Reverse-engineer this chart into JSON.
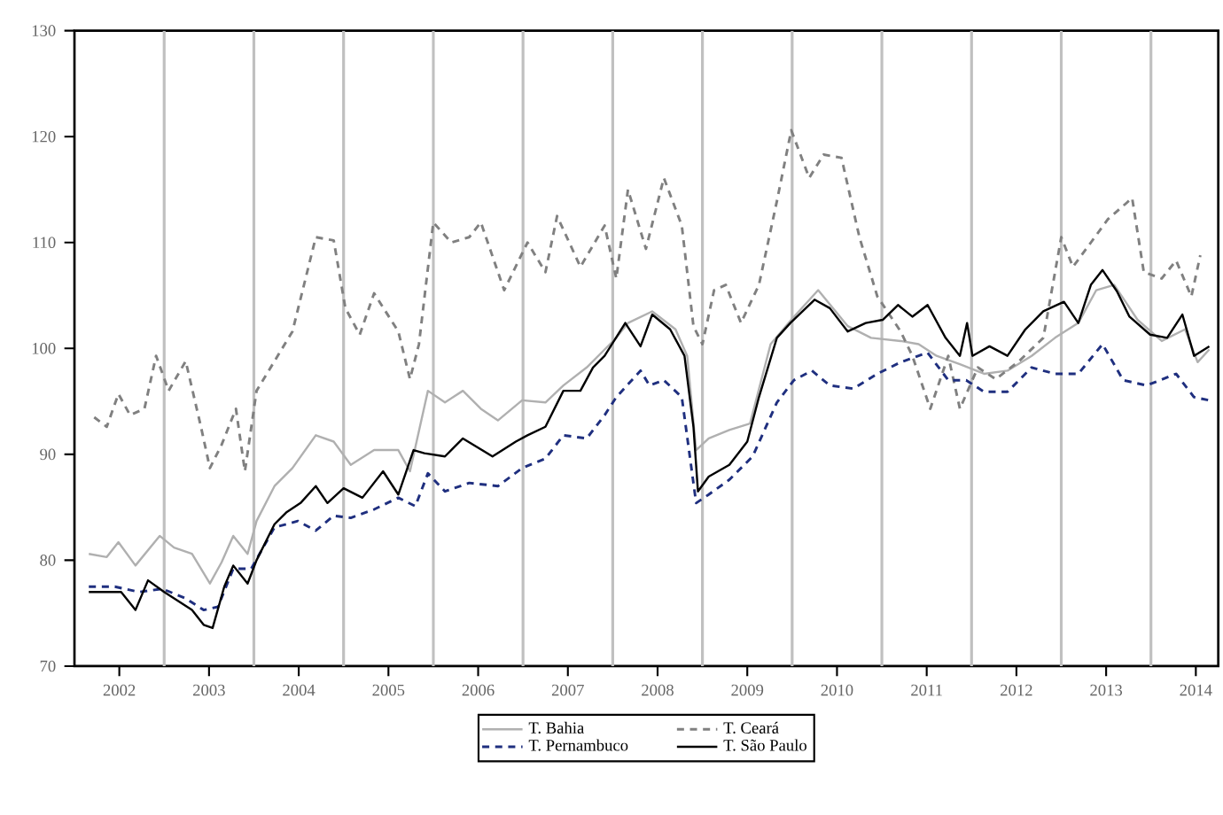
{
  "chart_data": {
    "type": "line",
    "xlim": [
      2002,
      2014.75
    ],
    "ylim": [
      70,
      130
    ],
    "yticks": [
      70,
      80,
      90,
      100,
      110,
      120,
      130
    ],
    "xticks": [
      {
        "value": 2002.5,
        "label": "2002"
      },
      {
        "value": 2003.5,
        "label": "2003"
      },
      {
        "value": 2004.5,
        "label": "2004"
      },
      {
        "value": 2005.5,
        "label": "2005"
      },
      {
        "value": 2006.5,
        "label": "2006"
      },
      {
        "value": 2007.5,
        "label": "2007"
      },
      {
        "value": 2008.5,
        "label": "2008"
      },
      {
        "value": 2009.5,
        "label": "2009"
      },
      {
        "value": 2010.5,
        "label": "2010"
      },
      {
        "value": 2011.5,
        "label": "2011"
      },
      {
        "value": 2012.5,
        "label": "2012"
      },
      {
        "value": 2013.5,
        "label": "2013"
      },
      {
        "value": 2014.5,
        "label": "2014"
      }
    ],
    "grid": false,
    "legend": "bottom",
    "marker": "none",
    "ref_lines": [
      {
        "axis": "x",
        "value": 2003,
        "color": "#c0c0c0"
      },
      {
        "axis": "x",
        "value": 2004,
        "color": "#c0c0c0"
      },
      {
        "axis": "x",
        "value": 2005,
        "color": "#c0c0c0"
      },
      {
        "axis": "x",
        "value": 2006,
        "color": "#c0c0c0"
      },
      {
        "axis": "x",
        "value": 2007,
        "color": "#c0c0c0"
      },
      {
        "axis": "x",
        "value": 2008,
        "color": "#c0c0c0"
      },
      {
        "axis": "x",
        "value": 2009,
        "color": "#c0c0c0"
      },
      {
        "axis": "x",
        "value": 2010,
        "color": "#c0c0c0"
      },
      {
        "axis": "x",
        "value": 2011,
        "color": "#c0c0c0"
      },
      {
        "axis": "x",
        "value": 2012,
        "color": "#c0c0c0"
      },
      {
        "axis": "x",
        "value": 2013,
        "color": "#c0c0c0"
      },
      {
        "axis": "x",
        "value": 2014,
        "color": "#c0c0c0"
      }
    ],
    "series": [
      {
        "name": "T. Bahia",
        "color": "#b0b0b0",
        "line_style": "solid",
        "x": [
          2002.16,
          2002.36,
          2002.49,
          2002.68,
          2002.95,
          2003.11,
          2003.31,
          2003.51,
          2003.64,
          2003.77,
          2003.93,
          2004.03,
          2004.23,
          2004.43,
          2004.69,
          2004.89,
          2005.08,
          2005.34,
          2005.61,
          2005.74,
          2005.94,
          2006.13,
          2006.33,
          2006.53,
          2006.72,
          2006.99,
          2007.25,
          2007.45,
          2007.71,
          2007.91,
          2008.04,
          2008.17,
          2008.44,
          2008.7,
          2008.83,
          2008.93,
          2009.07,
          2009.3,
          2009.53,
          2009.76,
          2009.99,
          2010.29,
          2010.62,
          2010.88,
          2011.21,
          2011.41,
          2011.61,
          2011.87,
          2012.14,
          2012.4,
          2012.67,
          2012.93,
          2013.19,
          2013.39,
          2013.59,
          2013.85,
          2014.12,
          2014.38,
          2014.52,
          2014.65
        ],
        "values": [
          80.6,
          80.3,
          81.7,
          79.5,
          82.3,
          81.2,
          80.6,
          77.8,
          79.8,
          82.3,
          80.6,
          83.7,
          87,
          88.7,
          91.8,
          91.2,
          89,
          90.4,
          90.4,
          88.4,
          96,
          94.9,
          96,
          94.3,
          93.2,
          95.1,
          94.9,
          96.5,
          98.2,
          99.9,
          101,
          102.4,
          103.5,
          101.8,
          99.3,
          90.4,
          91.5,
          92.3,
          92.9,
          100.4,
          102.7,
          105.5,
          102.1,
          101,
          100.7,
          100.4,
          99.3,
          98.5,
          97.6,
          97.9,
          99.3,
          101,
          102.4,
          105.5,
          106,
          102.7,
          100.7,
          101.8,
          98.7,
          99.9
        ]
      },
      {
        "name": "T. Ceará",
        "color": "#808080",
        "line_style": "dashed",
        "x": [
          2002.22,
          2002.36,
          2002.49,
          2002.62,
          2002.78,
          2002.91,
          2003.05,
          2003.24,
          2003.41,
          2003.51,
          2003.64,
          2003.8,
          2003.9,
          2004.03,
          2004.23,
          2004.43,
          2004.69,
          2004.89,
          2005.02,
          2005.18,
          2005.34,
          2005.61,
          2005.74,
          2005.84,
          2006.0,
          2006.2,
          2006.4,
          2006.53,
          2006.79,
          2007.05,
          2007.25,
          2007.38,
          2007.64,
          2007.91,
          2008.04,
          2008.17,
          2008.37,
          2008.57,
          2008.77,
          2008.9,
          2009.0,
          2009.13,
          2009.26,
          2009.43,
          2009.63,
          2009.83,
          2009.99,
          2010.19,
          2010.35,
          2010.55,
          2010.75,
          2010.95,
          2011.21,
          2011.34,
          2011.54,
          2011.74,
          2011.87,
          2012.07,
          2012.27,
          2012.53,
          2012.8,
          2013.0,
          2013.13,
          2013.33,
          2013.52,
          2013.79,
          2013.92,
          2014.12,
          2014.28,
          2014.45,
          2014.55
        ],
        "values": [
          93.5,
          92.6,
          95.7,
          93.7,
          94.3,
          99.3,
          96,
          98.8,
          92.6,
          88.7,
          90.9,
          94.3,
          88.4,
          96,
          98.8,
          101.6,
          110.5,
          110.2,
          103.8,
          101.3,
          105.2,
          101.6,
          97.1,
          100.4,
          111.9,
          110,
          110.5,
          111.9,
          105.5,
          110,
          107.2,
          112.5,
          107.7,
          111.6,
          106.6,
          115,
          109.4,
          116.1,
          111.6,
          102.1,
          100.4,
          105.5,
          106,
          102.4,
          106,
          113.9,
          120.6,
          116.1,
          118.3,
          118,
          110.5,
          104.9,
          101.6,
          99.3,
          94.3,
          99.3,
          94.3,
          98.2,
          97.1,
          98.8,
          101,
          110.5,
          107.7,
          110,
          112.2,
          114.2,
          107.2,
          106.6,
          108.3,
          104.9,
          108.8
        ]
      },
      {
        "name": "T. Pernambuco",
        "color": "#1f2f7f",
        "line_style": "dashed",
        "x": [
          2002.16,
          2002.45,
          2002.72,
          2002.98,
          2003.24,
          2003.44,
          2003.6,
          2003.77,
          2003.97,
          2004.23,
          2004.49,
          2004.69,
          2004.89,
          2005.08,
          2005.34,
          2005.61,
          2005.8,
          2005.94,
          2006.13,
          2006.4,
          2006.72,
          2006.99,
          2007.25,
          2007.45,
          2007.71,
          2007.91,
          2008.04,
          2008.31,
          2008.41,
          2008.57,
          2008.77,
          2008.93,
          2009.07,
          2009.3,
          2009.56,
          2009.83,
          2010.02,
          2010.22,
          2010.42,
          2010.68,
          2010.95,
          2011.21,
          2011.51,
          2011.74,
          2011.94,
          2012.14,
          2012.4,
          2012.67,
          2012.93,
          2013.19,
          2013.46,
          2013.69,
          2013.95,
          2014.28,
          2014.48,
          2014.65
        ],
        "values": [
          77.5,
          77.5,
          77,
          77.3,
          76.4,
          75.3,
          75.6,
          79.2,
          79.2,
          83.1,
          83.7,
          82.8,
          84.2,
          84,
          84.8,
          85.9,
          85.1,
          88.2,
          86.5,
          87.3,
          87,
          88.7,
          89.6,
          91.8,
          91.5,
          93.7,
          95.4,
          97.9,
          96.5,
          97,
          95.4,
          85.4,
          86.2,
          87.6,
          89.8,
          94.9,
          97,
          97.9,
          96.5,
          96.2,
          97.6,
          98.7,
          99.6,
          97,
          97,
          95.9,
          95.9,
          98.2,
          97.6,
          97.6,
          100.4,
          97,
          96.5,
          97.6,
          95.4,
          95.1
        ]
      },
      {
        "name": "T. São Paulo",
        "color": "#000000",
        "line_style": "solid",
        "x": [
          2002.16,
          2002.52,
          2002.68,
          2002.82,
          2003.0,
          2003.31,
          2003.44,
          2003.54,
          2003.67,
          2003.77,
          2003.93,
          2004.03,
          2004.23,
          2004.36,
          2004.52,
          2004.69,
          2004.82,
          2005.0,
          2005.21,
          2005.44,
          2005.61,
          2005.78,
          2005.9,
          2006.13,
          2006.33,
          2006.66,
          2006.92,
          2007.05,
          2007.25,
          2007.45,
          2007.64,
          2007.78,
          2007.91,
          2008.14,
          2008.31,
          2008.44,
          2008.64,
          2008.8,
          2008.9,
          2008.95,
          2009.07,
          2009.3,
          2009.5,
          2009.63,
          2009.83,
          2009.98,
          2010.25,
          2010.42,
          2010.62,
          2010.82,
          2011.01,
          2011.18,
          2011.34,
          2011.51,
          2011.71,
          2011.87,
          2011.95,
          2012.01,
          2012.2,
          2012.4,
          2012.6,
          2012.8,
          2013.03,
          2013.19,
          2013.33,
          2013.46,
          2013.62,
          2013.76,
          2013.99,
          2014.18,
          2014.35,
          2014.48,
          2014.65
        ],
        "values": [
          77,
          77,
          75.3,
          78.1,
          77,
          75.3,
          73.9,
          73.6,
          77.5,
          79.5,
          77.8,
          80,
          83.4,
          84.5,
          85.4,
          87,
          85.4,
          86.8,
          85.9,
          88.4,
          86.2,
          90.4,
          90.1,
          89.8,
          91.5,
          89.8,
          91.2,
          91.8,
          92.6,
          96,
          96,
          98.2,
          99.3,
          102.4,
          100.2,
          103.2,
          101.8,
          99.3,
          92.6,
          86.5,
          87.9,
          89,
          91.2,
          95.4,
          101,
          102.4,
          104.6,
          103.8,
          101.6,
          102.4,
          102.7,
          104.1,
          103,
          104.1,
          101,
          99.3,
          102.4,
          99.3,
          100.2,
          99.3,
          101.8,
          103.5,
          104.4,
          102.4,
          106,
          107.4,
          105.4,
          103,
          101.3,
          101,
          103.2,
          99.3,
          100.2
        ]
      }
    ]
  }
}
